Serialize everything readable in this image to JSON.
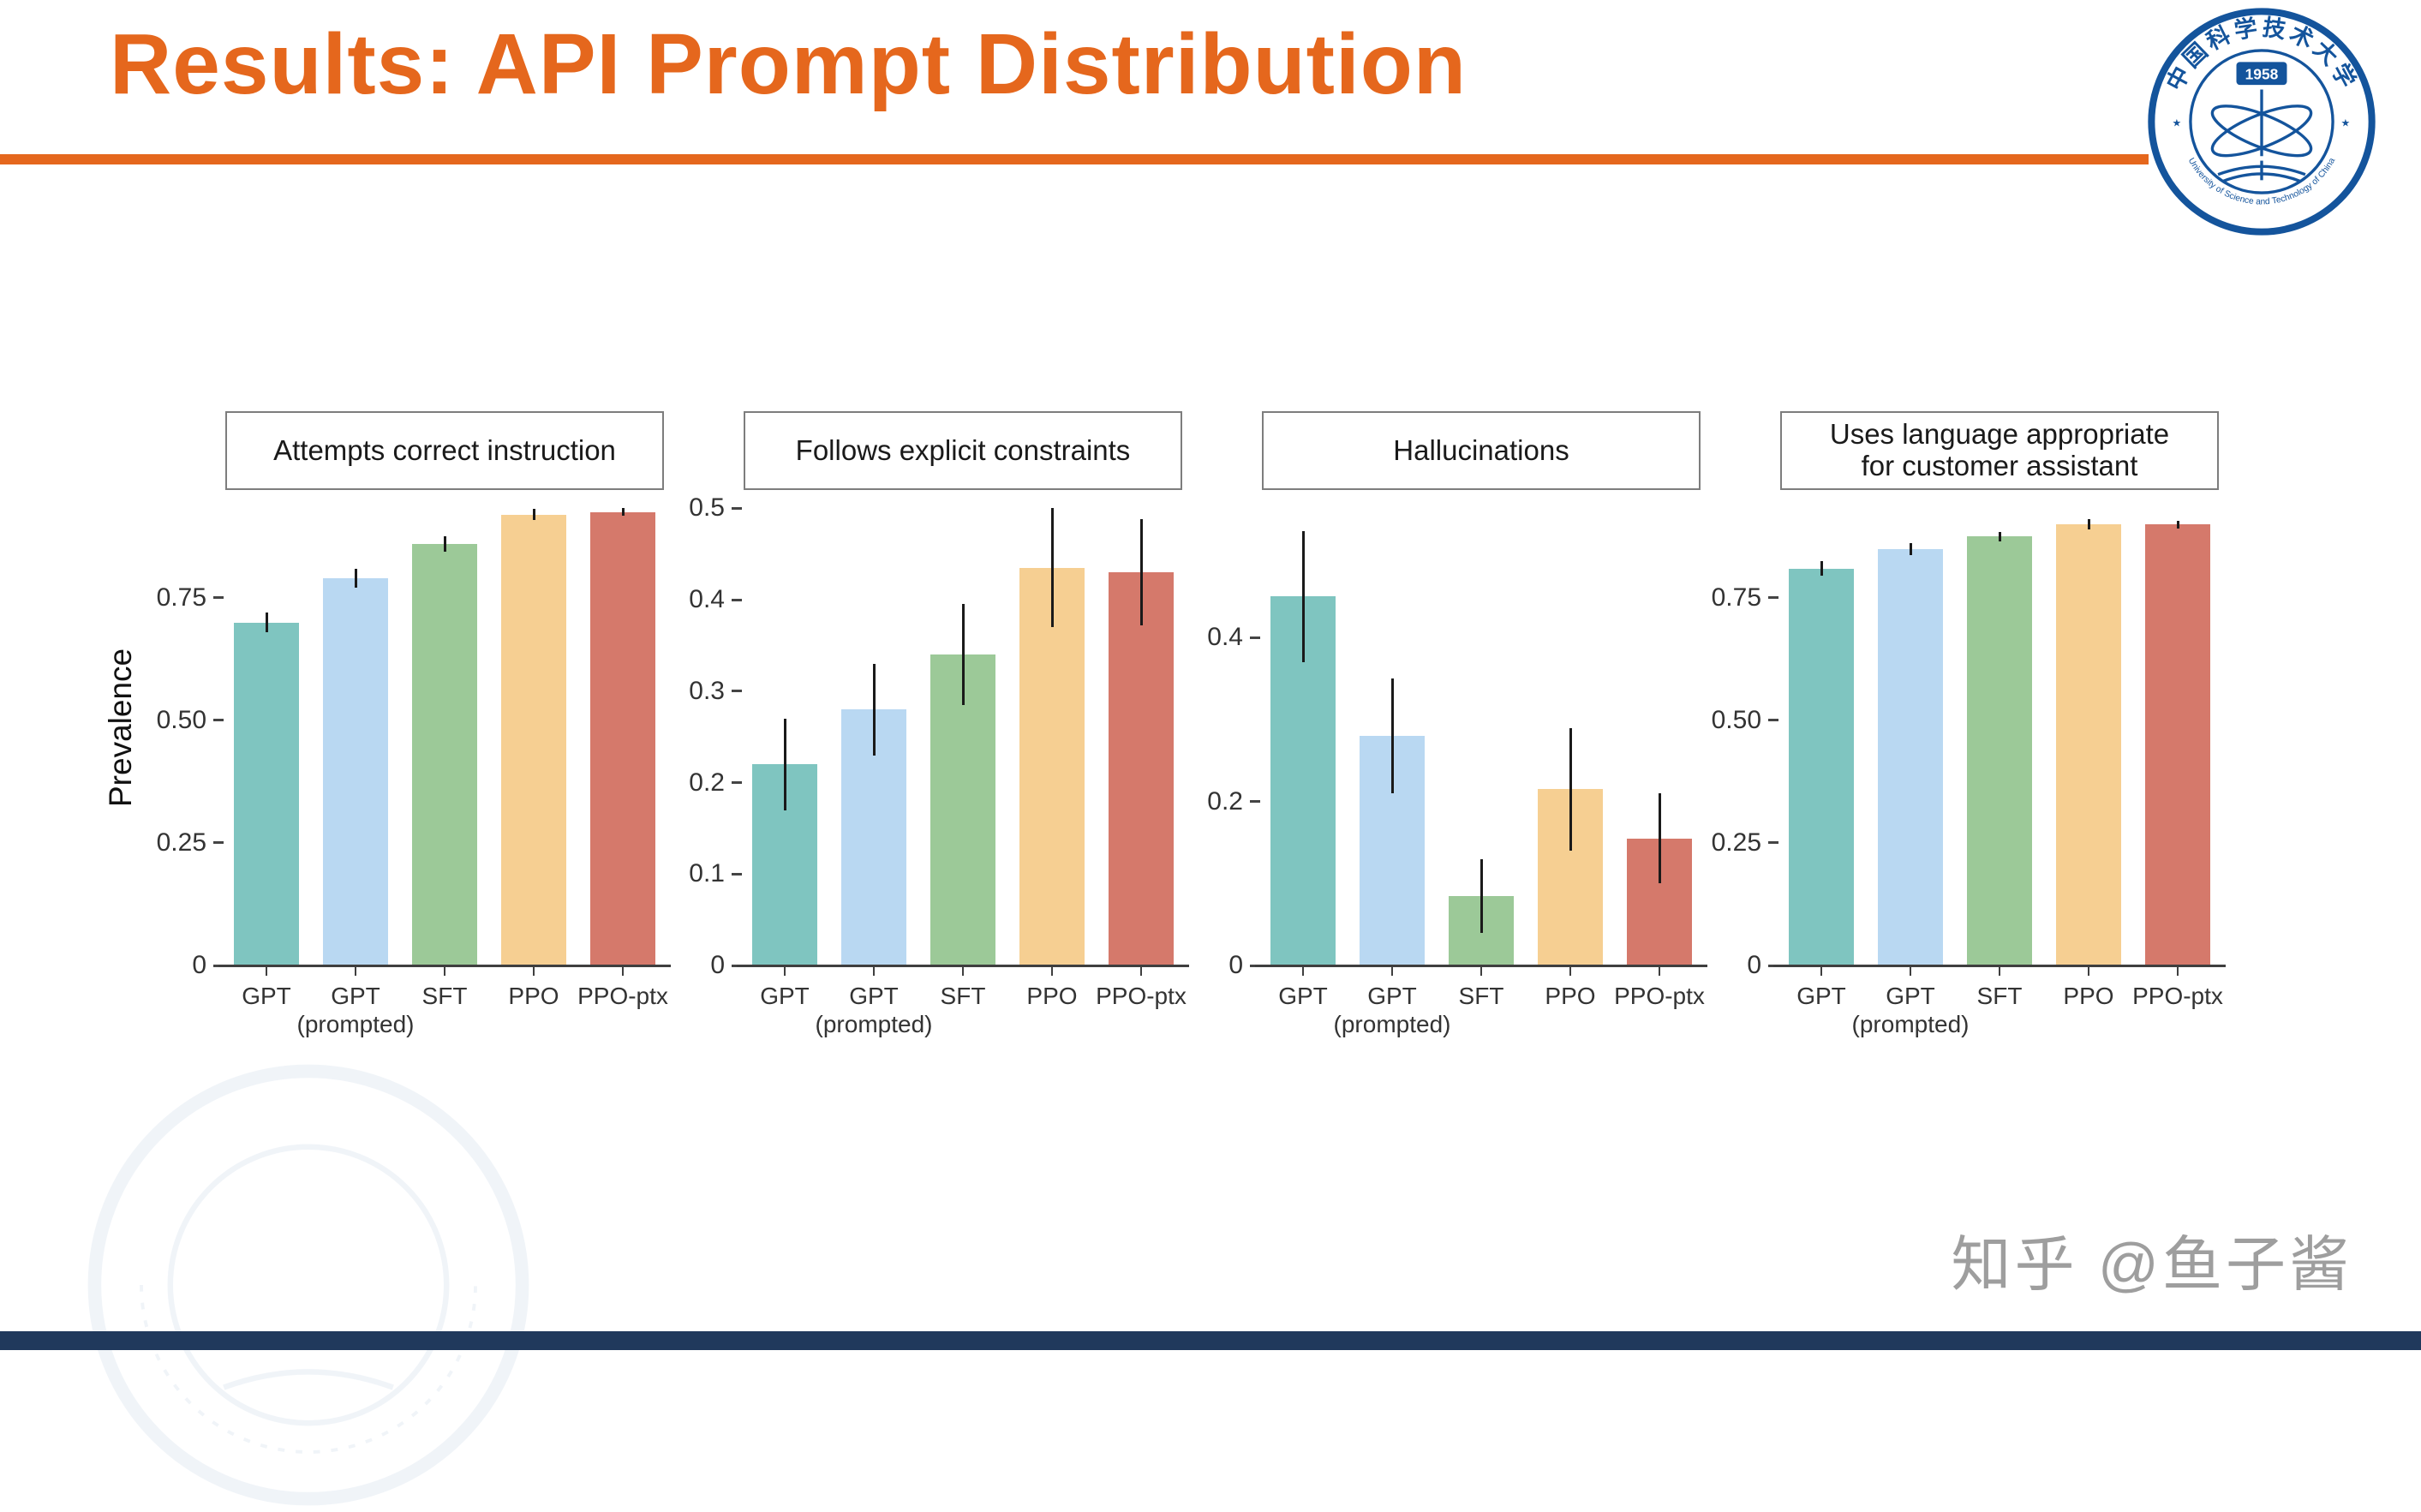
{
  "slide": {
    "title": "Results: API Prompt Distribution",
    "accent_color": "#E5671D",
    "footer_color": "#20395C",
    "watermark_text": "知乎 @鱼子酱"
  },
  "logo": {
    "year": "1958",
    "ring_text_top": "中国科学技术大学",
    "ring_text_bottom": "University of Science and Technology of China",
    "color": "#14549C"
  },
  "bar_colors": [
    "#7FC5C0",
    "#B9D8F2",
    "#9CC998",
    "#F6CF92",
    "#D5796B"
  ],
  "chart_data": [
    {
      "type": "bar",
      "title": "Attempts correct instruction",
      "title_lines": [
        "Attempts correct instruction"
      ],
      "categories": [
        [
          "GPT"
        ],
        [
          "GPT",
          "(prompted)"
        ],
        [
          "SFT"
        ],
        [
          "PPO"
        ],
        [
          "PPO-ptx"
        ]
      ],
      "values": [
        0.7,
        0.79,
        0.86,
        0.92,
        0.925
      ],
      "errors": [
        0.02,
        0.02,
        0.015,
        0.012,
        0.008
      ],
      "ylabel": "Prevalence",
      "xlabel": "",
      "ylim": [
        0,
        0.97
      ],
      "yticks": [
        0,
        0.25,
        0.5,
        0.75
      ],
      "ytick_labels": [
        "0",
        "0.25",
        "0.50",
        "0.75"
      ],
      "grid": false,
      "legend": "none"
    },
    {
      "type": "bar",
      "title": "Follows explicit constraints",
      "title_lines": [
        "Follows explicit constraints"
      ],
      "categories": [
        [
          "GPT"
        ],
        [
          "GPT",
          "(prompted)"
        ],
        [
          "SFT"
        ],
        [
          "PPO"
        ],
        [
          "PPO-ptx"
        ]
      ],
      "values": [
        0.22,
        0.28,
        0.34,
        0.435,
        0.43
      ],
      "errors": [
        0.05,
        0.05,
        0.055,
        0.065,
        0.058
      ],
      "ylabel": "",
      "xlabel": "",
      "ylim": [
        0,
        0.52
      ],
      "yticks": [
        0,
        0.1,
        0.2,
        0.3,
        0.4,
        0.5
      ],
      "ytick_labels": [
        "0",
        "0.1",
        "0.2",
        "0.3",
        "0.4",
        "0.5"
      ],
      "grid": false,
      "legend": "none"
    },
    {
      "type": "bar",
      "title": "Hallucinations",
      "title_lines": [
        "Hallucinations"
      ],
      "categories": [
        [
          "GPT"
        ],
        [
          "GPT",
          "(prompted)"
        ],
        [
          "SFT"
        ],
        [
          "PPO"
        ],
        [
          "PPO-ptx"
        ]
      ],
      "values": [
        0.45,
        0.28,
        0.085,
        0.215,
        0.155
      ],
      "errors": [
        0.08,
        0.07,
        0.045,
        0.075,
        0.055
      ],
      "ylabel": "",
      "xlabel": "",
      "ylim": [
        0,
        0.58
      ],
      "yticks": [
        0,
        0.2,
        0.4
      ],
      "ytick_labels": [
        "0",
        "0.2",
        "0.4"
      ],
      "grid": false,
      "legend": "none"
    },
    {
      "type": "bar",
      "title": "Uses language appropriate for customer assistant",
      "title_lines": [
        "Uses language appropriate",
        "for customer assistant"
      ],
      "categories": [
        [
          "GPT"
        ],
        [
          "GPT",
          "(prompted)"
        ],
        [
          "SFT"
        ],
        [
          "PPO"
        ],
        [
          "PPO-ptx"
        ]
      ],
      "values": [
        0.81,
        0.85,
        0.875,
        0.9,
        0.9
      ],
      "errors": [
        0.015,
        0.012,
        0.01,
        0.01,
        0.008
      ],
      "ylabel": "",
      "xlabel": "",
      "ylim": [
        0,
        0.97
      ],
      "yticks": [
        0,
        0.25,
        0.5,
        0.75
      ],
      "ytick_labels": [
        "0",
        "0.25",
        "0.50",
        "0.75"
      ],
      "grid": false,
      "legend": "none"
    }
  ]
}
